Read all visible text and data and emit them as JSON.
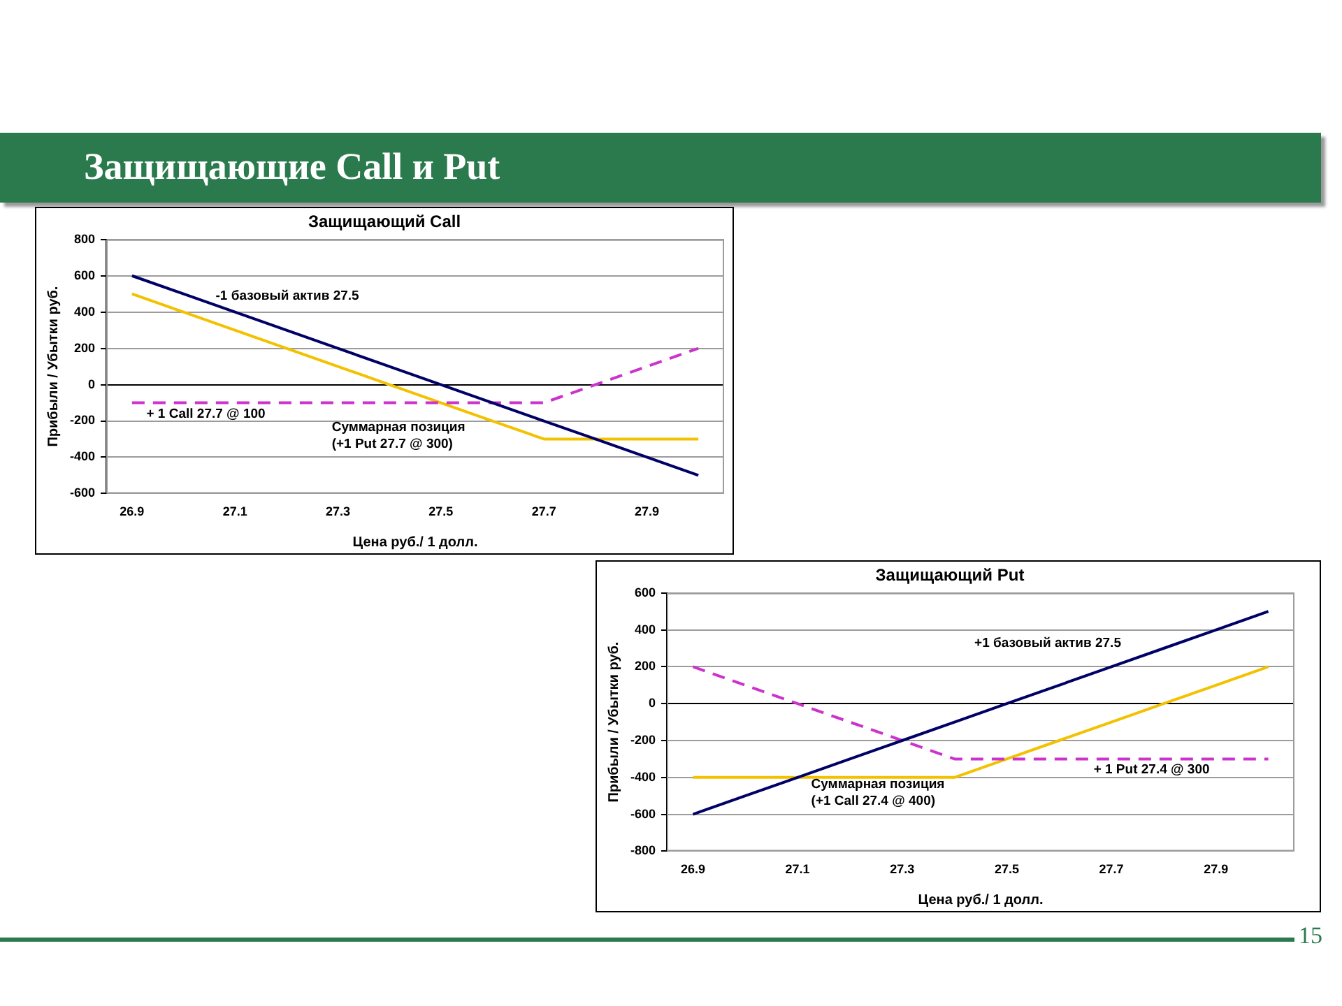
{
  "chart_data": [
    {
      "type": "other",
      "title": "Защищающие Call и Put",
      "annotations": [
        "15"
      ]
    },
    {
      "type": "line",
      "title": "Защищающий Call",
      "xlabel": "Цена руб./ 1 долл.",
      "ylabel": "Прибыли / Убытки руб.",
      "categories": [
        "26.9",
        null,
        "27.1",
        null,
        "27.3",
        null,
        "27.5",
        null,
        "27.7",
        null,
        "27.9",
        null
      ],
      "ylim": [
        -600,
        800
      ],
      "yticks": [
        -600,
        -400,
        -200,
        0,
        200,
        400,
        600,
        800
      ],
      "grid": "y",
      "marker": "none",
      "line_style": "solid",
      "series": [
        {
          "name": "-1 базовый актив 27.5",
          "color": "#000066",
          "values": [
            600,
            500,
            400,
            300,
            200,
            100,
            0,
            -100,
            -200,
            -300,
            -400,
            -500
          ]
        },
        {
          "name": "+ 1 Call 27.7 @ 100",
          "color": "#cc33cc",
          "line_style": "dashed",
          "values": [
            -100,
            -100,
            -100,
            -100,
            -100,
            -100,
            -100,
            -100,
            -100,
            0,
            100,
            200
          ]
        },
        {
          "name": "Суммарная позиция\n(+1 Put 27.7 @ 300)",
          "color": "#f2c200",
          "values": [
            500,
            400,
            300,
            200,
            100,
            0,
            -100,
            -200,
            -300,
            -300,
            -300,
            -300
          ]
        }
      ]
    },
    {
      "type": "line",
      "title": "Защищающий Put",
      "xlabel": "Цена руб./ 1 долл.",
      "ylabel": "Прибыли / Убытки руб.",
      "categories": [
        "26.9",
        null,
        "27.1",
        null,
        "27.3",
        null,
        "27.5",
        null,
        "27.7",
        null,
        "27.9",
        null
      ],
      "ylim": [
        -800,
        600
      ],
      "yticks": [
        -800,
        -600,
        -400,
        -200,
        0,
        200,
        400,
        600
      ],
      "grid": "y",
      "marker": "none",
      "line_style": "solid",
      "series": [
        {
          "name": "+1 базовый актив 27.5",
          "color": "#000066",
          "values": [
            -600,
            -500,
            -400,
            -300,
            -200,
            -100,
            0,
            100,
            200,
            300,
            400,
            500
          ]
        },
        {
          "name": "+ 1 Put 27.4 @ 300",
          "color": "#cc33cc",
          "line_style": "dashed",
          "values": [
            200,
            100,
            0,
            -100,
            -200,
            -300,
            -300,
            -300,
            -300,
            -300,
            -300,
            -300
          ]
        },
        {
          "name": "Суммарная позиция\n(+1 Call 27.4 @ 400)",
          "color": "#f2c200",
          "values": [
            -400,
            -400,
            -400,
            -400,
            -400,
            -400,
            -300,
            -200,
            -100,
            0,
            100,
            200
          ]
        }
      ]
    }
  ]
}
